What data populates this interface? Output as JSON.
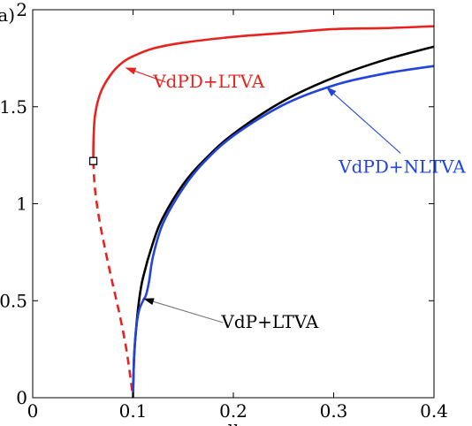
{
  "chart_data": {
    "type": "line",
    "title": "",
    "xlabel": "μ",
    "ylabel": "",
    "panel_label": "(a)",
    "xlim": [
      0,
      0.4
    ],
    "ylim": [
      0,
      2
    ],
    "x_ticks": [
      0,
      0.1,
      0.2,
      0.3,
      0.4
    ],
    "x_tick_labels": [
      "0",
      "0.1",
      "0.2",
      "0.3",
      "0.4"
    ],
    "y_ticks": [
      0,
      0.5,
      1,
      1.5,
      2
    ],
    "y_tick_labels": [
      "0",
      "0.5",
      "1",
      "1.5",
      "2"
    ],
    "grid": false,
    "series": [
      {
        "name": "VdPD+LTVA",
        "color": "#e8231f",
        "style": "solid",
        "x": [
          0.0604,
          0.0605,
          0.061,
          0.062,
          0.065,
          0.07,
          0.08,
          0.09,
          0.1,
          0.12,
          0.15,
          0.2,
          0.25,
          0.3,
          0.35,
          0.4
        ],
        "y": [
          1.22,
          1.3,
          1.38,
          1.45,
          1.53,
          1.6,
          1.68,
          1.73,
          1.76,
          1.8,
          1.83,
          1.86,
          1.88,
          1.9,
          1.905,
          1.915
        ]
      },
      {
        "name": "VdPD+LTVA (unstable)",
        "color": "#e8231f",
        "style": "dashed",
        "x": [
          0.0604,
          0.062,
          0.066,
          0.072,
          0.08,
          0.087,
          0.093,
          0.097,
          0.1
        ],
        "y": [
          1.22,
          1.08,
          0.93,
          0.77,
          0.58,
          0.42,
          0.26,
          0.12,
          0.0
        ]
      },
      {
        "name": "VdP+LTVA",
        "color": "#000000",
        "style": "solid",
        "x": [
          0.1,
          0.101,
          0.103,
          0.106,
          0.11,
          0.12,
          0.13,
          0.15,
          0.17,
          0.2,
          0.25,
          0.3,
          0.35,
          0.4
        ],
        "y": [
          0.0,
          0.2,
          0.35,
          0.5,
          0.62,
          0.8,
          0.93,
          1.1,
          1.22,
          1.36,
          1.53,
          1.65,
          1.74,
          1.81
        ]
      },
      {
        "name": "VdPD+NLTVA",
        "color": "#2244dd",
        "style": "solid",
        "x": [
          0.1,
          0.101,
          0.103,
          0.106,
          0.11,
          0.113,
          0.116,
          0.12,
          0.13,
          0.15,
          0.17,
          0.2,
          0.25,
          0.3,
          0.35,
          0.4
        ],
        "y": [
          0.0,
          0.2,
          0.35,
          0.45,
          0.5,
          0.53,
          0.6,
          0.73,
          0.9,
          1.08,
          1.21,
          1.35,
          1.51,
          1.61,
          1.67,
          1.71
        ]
      }
    ],
    "markers": [
      {
        "name": "fold",
        "x": 0.0604,
        "y": 1.22,
        "shape": "square"
      }
    ],
    "annotations": [
      {
        "text": "VdPD+LTVA",
        "series": "VdPD+LTVA",
        "arrow_to": [
          0.093,
          1.7
        ],
        "text_at": [
          0.12,
          1.6
        ]
      },
      {
        "text": "VdPD+NLTVA",
        "series": "VdPD+NLTVA",
        "arrow_to": [
          0.293,
          1.6
        ],
        "text_at": [
          0.305,
          1.16
        ]
      },
      {
        "text": "VdP+LTVA",
        "series": "VdP+LTVA",
        "arrow_to": [
          0.111,
          0.51
        ],
        "text_at": [
          0.188,
          0.36
        ]
      }
    ]
  }
}
